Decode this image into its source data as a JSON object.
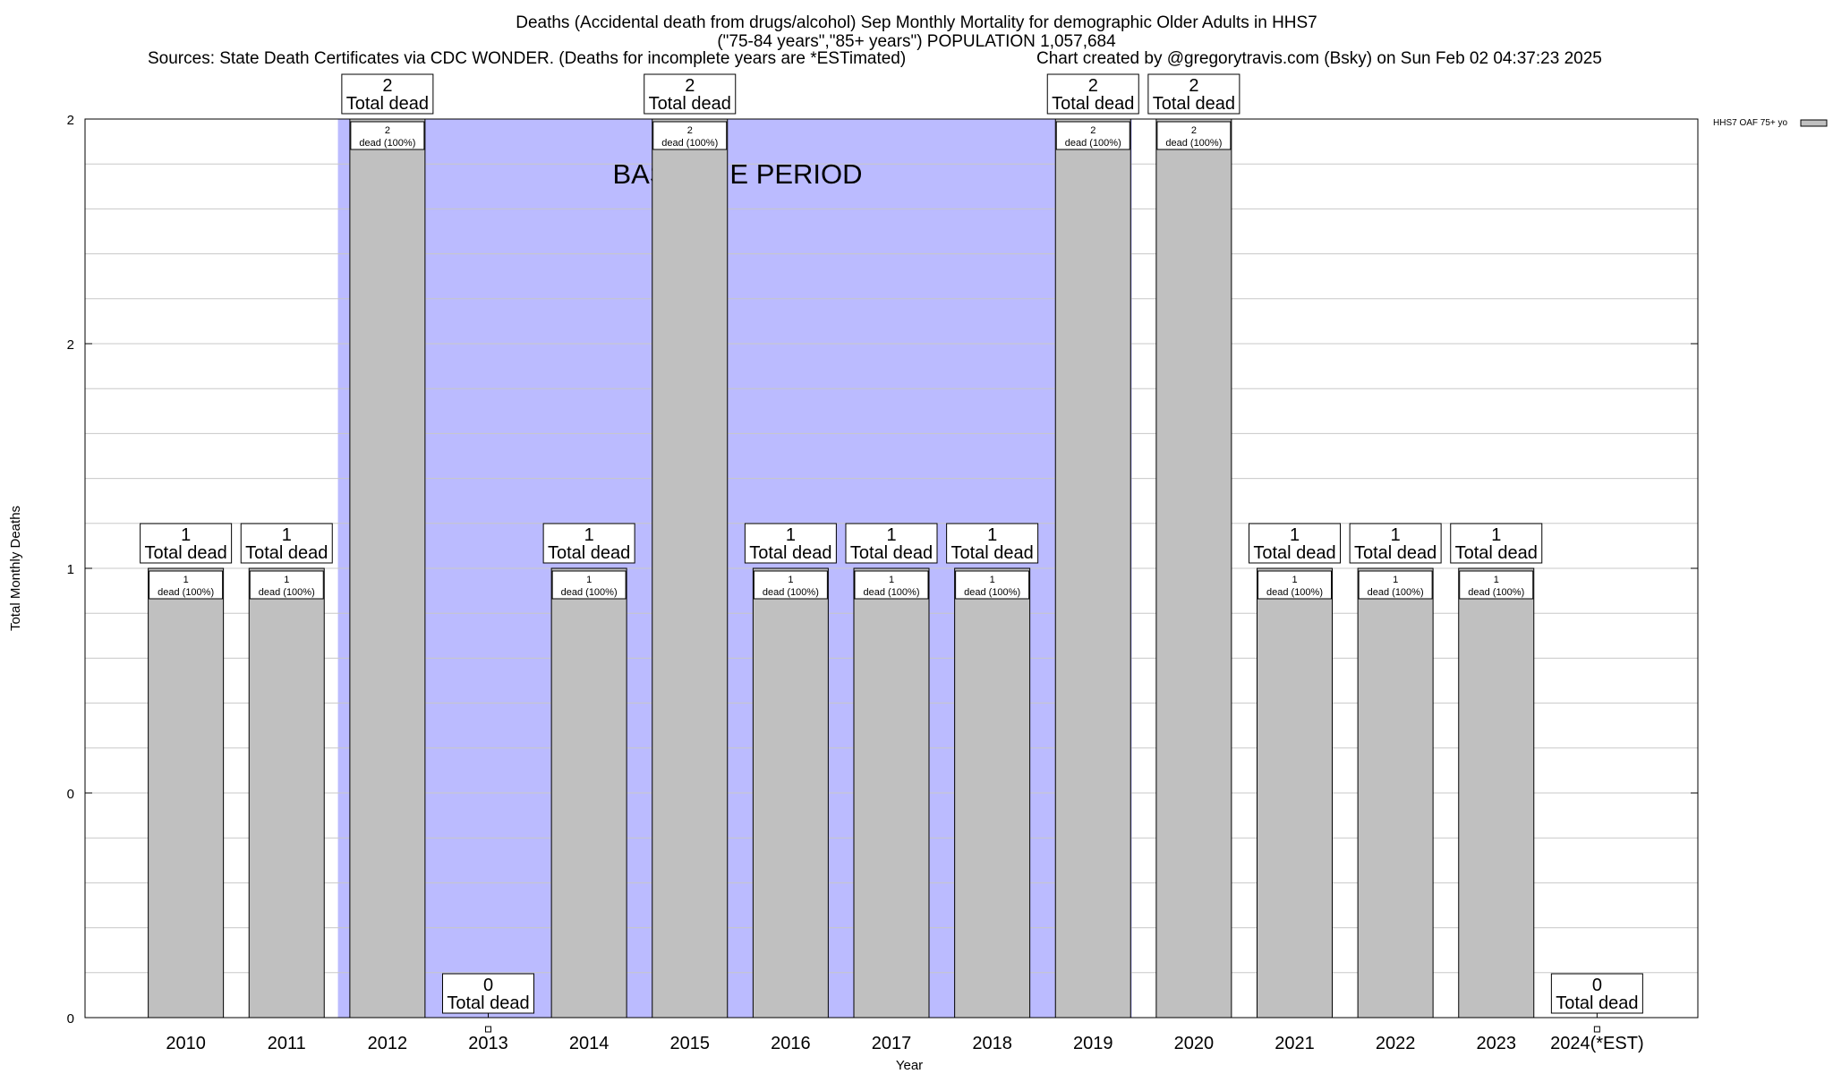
{
  "title": {
    "line1": "Deaths (Accidental death from drugs/alcohol) Sep Monthly Mortality for demographic Older Adults in HHS7",
    "line2": "(\"75-84 years\",\"85+ years\") POPULATION 1,057,684",
    "sources": "Sources: State Death Certificates via CDC WONDER. (Deaths for incomplete years are *ESTimated)",
    "credit": "Chart created by @gregorytravis.com (Bsky) on Sun Feb 02 04:37:23 2025"
  },
  "chart_data": {
    "type": "bar",
    "xlabel": "Year",
    "ylabel": "Total Monthly Deaths",
    "ylim": [
      0,
      2
    ],
    "y_tick_labels": [
      "0",
      "0",
      "1",
      "2",
      "2"
    ],
    "grid": true,
    "legend": {
      "label": "HHS7 OAF 75+ yo",
      "placement": "top-right",
      "color": "#c0c0c0"
    },
    "bar_color": "#c0c0c0",
    "baseline_band": {
      "label": "BASELINE PERIOD",
      "from": "2012",
      "to": "2019",
      "color": "#bbbbff"
    },
    "categories": [
      "2010",
      "2011",
      "2012",
      "2013",
      "2014",
      "2015",
      "2016",
      "2017",
      "2018",
      "2019",
      "2020",
      "2021",
      "2022",
      "2023",
      "2024(*EST)"
    ],
    "series": [
      {
        "values": [
          1,
          1,
          2,
          0,
          1,
          2,
          1,
          1,
          1,
          2,
          2,
          1,
          1,
          1,
          0
        ]
      }
    ],
    "total_label_suffix": "Total dead",
    "inner_label_suffix": "dead (100%)"
  }
}
